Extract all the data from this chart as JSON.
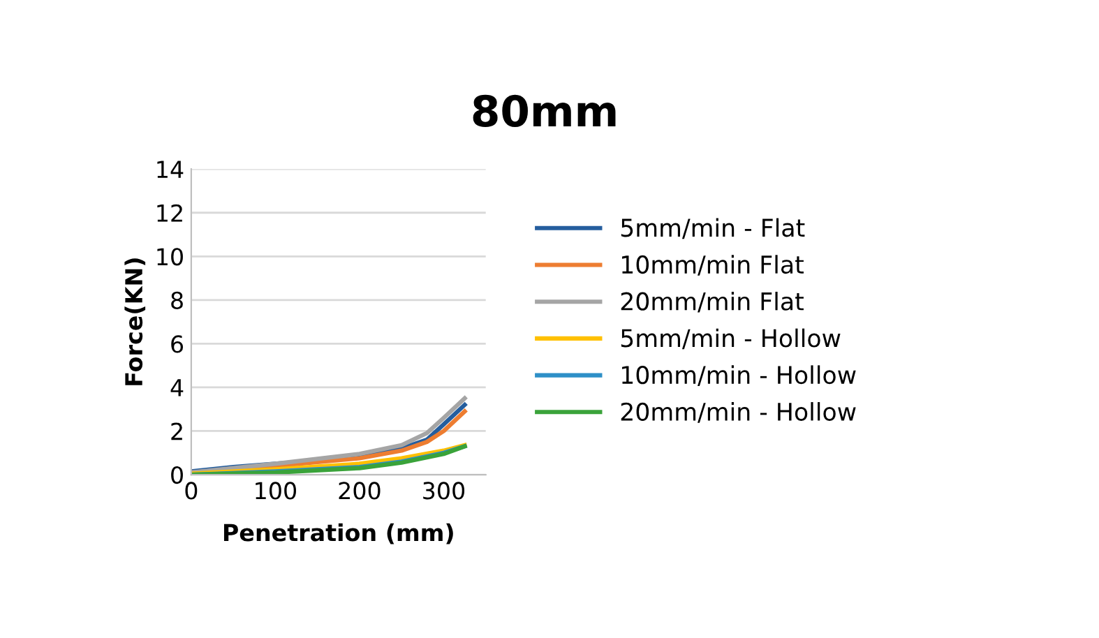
{
  "chart_data": {
    "type": "line",
    "title": "80mm",
    "xlabel": "Penetration (mm)",
    "ylabel": "Force(KN)",
    "xlim": [
      0,
      350
    ],
    "xticks": [
      0,
      100,
      200,
      300
    ],
    "ylim": [
      0,
      14
    ],
    "yticks": [
      0,
      2,
      4,
      6,
      8,
      10,
      12,
      14
    ],
    "grid": "y",
    "legend": "right",
    "marker": "none",
    "line_style": "solid",
    "series": [
      {
        "name": "5mm/min - Flat",
        "color": "#255e9e",
        "x": [
          0,
          50,
          100,
          150,
          200,
          250,
          280,
          300,
          325
        ],
        "values": [
          0.15,
          0.35,
          0.5,
          0.65,
          0.85,
          1.2,
          1.6,
          2.3,
          3.2
        ]
      },
      {
        "name": "10mm/min Flat",
        "color": "#ed7d31",
        "x": [
          0,
          100,
          200,
          250,
          280,
          300,
          325
        ],
        "values": [
          0.1,
          0.4,
          0.75,
          1.1,
          1.5,
          2.0,
          2.9
        ]
      },
      {
        "name": "20mm/min Flat",
        "color": "#a5a5a5",
        "x": [
          0,
          100,
          200,
          250,
          280,
          300,
          325
        ],
        "values": [
          0.1,
          0.5,
          0.95,
          1.35,
          1.9,
          2.6,
          3.5
        ]
      },
      {
        "name": "5mm/min - Hollow",
        "color": "#ffc000",
        "x": [
          0,
          100,
          200,
          250,
          300,
          325
        ],
        "values": [
          0.05,
          0.25,
          0.5,
          0.75,
          1.1,
          1.35
        ]
      },
      {
        "name": "10mm/min - Hollow",
        "color": "#2e8fc7",
        "x": [
          0,
          100,
          200,
          250,
          300,
          325
        ],
        "values": [
          0.0,
          0.15,
          0.35,
          0.6,
          1.0,
          1.3
        ]
      },
      {
        "name": "20mm/min - Hollow",
        "color": "#3aa33a",
        "x": [
          0,
          100,
          200,
          250,
          300,
          325
        ],
        "values": [
          0.0,
          0.1,
          0.3,
          0.55,
          0.95,
          1.3
        ]
      }
    ]
  }
}
